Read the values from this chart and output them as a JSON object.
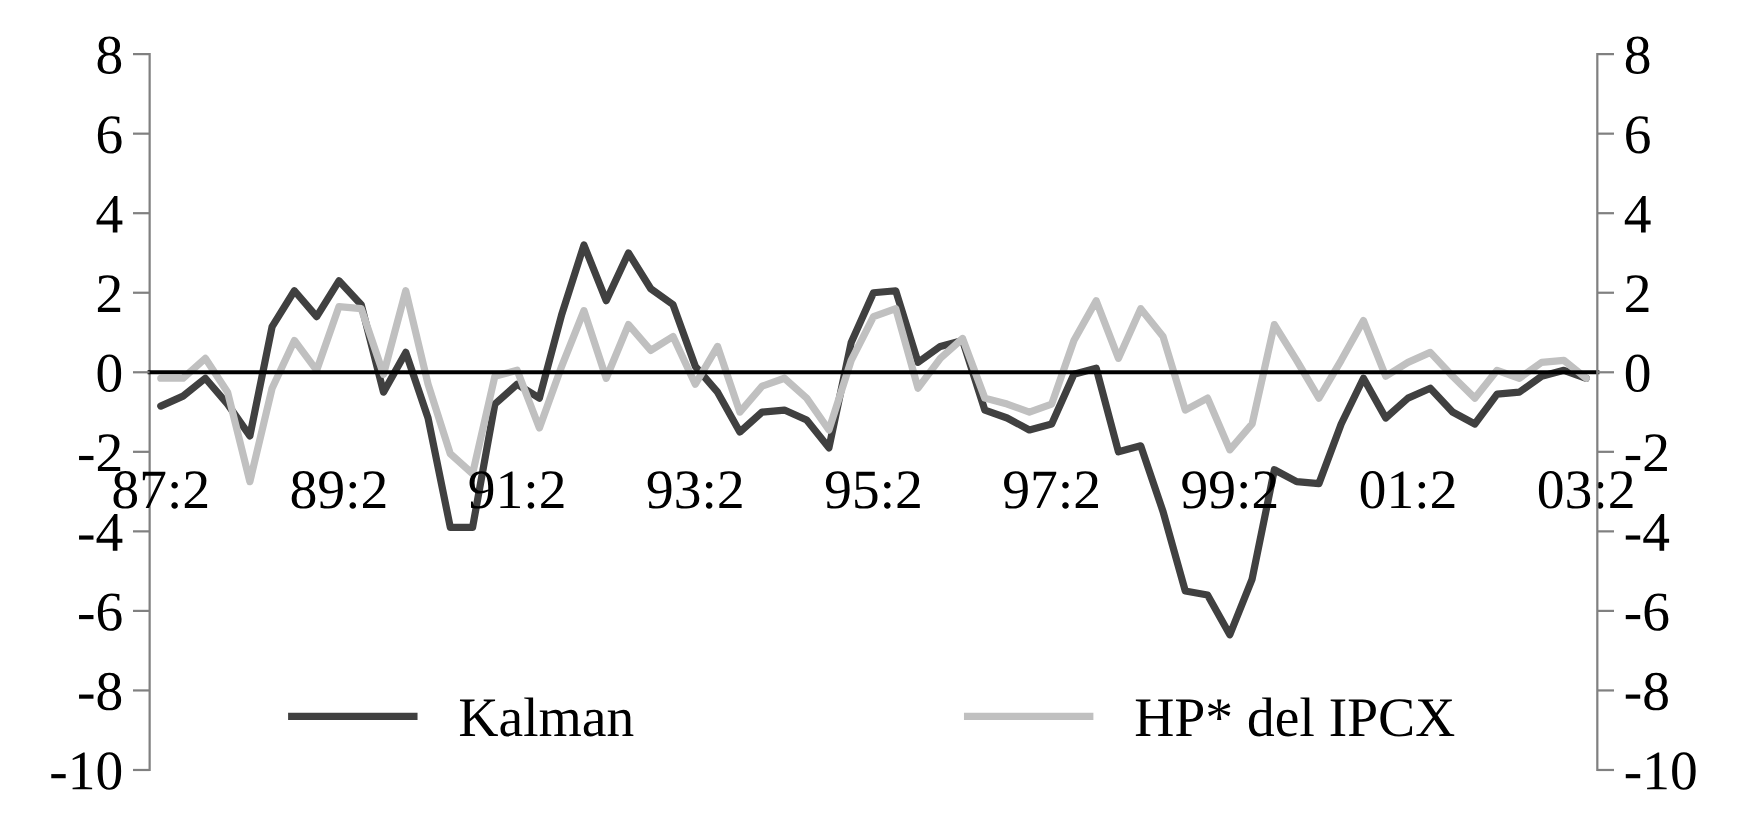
{
  "chart_data": {
    "type": "line",
    "categories": [
      "87:2",
      null,
      null,
      null,
      null,
      null,
      null,
      null,
      "89:2",
      null,
      null,
      null,
      null,
      null,
      null,
      null,
      "91:2",
      null,
      null,
      null,
      null,
      null,
      null,
      null,
      "93:2",
      null,
      null,
      null,
      null,
      null,
      null,
      null,
      "95:2",
      null,
      null,
      null,
      null,
      null,
      null,
      null,
      "97:2",
      null,
      null,
      null,
      null,
      null,
      null,
      null,
      "99:2",
      null,
      null,
      null,
      null,
      null,
      null,
      null,
      "01:2",
      null,
      null,
      null,
      null,
      null,
      null,
      null,
      "03:2"
    ],
    "series": [
      {
        "name": "Kalman",
        "color": "#404040",
        "values": [
          -0.85,
          -0.6,
          -0.15,
          -0.8,
          -1.6,
          1.15,
          2.05,
          1.4,
          2.3,
          1.7,
          -0.5,
          0.5,
          -1.15,
          -3.9,
          -3.9,
          -0.8,
          -0.3,
          -0.65,
          1.45,
          3.2,
          1.8,
          3.0,
          2.1,
          1.7,
          0.15,
          -0.5,
          -1.5,
          -1.0,
          -0.95,
          -1.2,
          -1.9,
          0.75,
          2.0,
          2.05,
          0.25,
          0.65,
          0.8,
          -0.95,
          -1.15,
          -1.45,
          -1.3,
          -0.05,
          0.1,
          -2.0,
          -1.85,
          -3.5,
          -5.5,
          -5.6,
          -6.6,
          -5.2,
          -2.45,
          -2.75,
          -2.8,
          -1.3,
          -0.15,
          -1.15,
          -0.65,
          -0.4,
          -1.0,
          -1.3,
          -0.55,
          -0.5,
          -0.1,
          0.05,
          -0.15
        ]
      },
      {
        "name": "HP* del IPCX",
        "color": "#c0c0c0",
        "values": [
          -0.15,
          -0.15,
          0.35,
          -0.5,
          -2.75,
          -0.4,
          0.8,
          0.05,
          1.65,
          1.6,
          -0.05,
          2.05,
          -0.3,
          -2.05,
          -2.55,
          -0.1,
          0.05,
          -1.4,
          0.15,
          1.55,
          -0.15,
          1.2,
          0.55,
          0.9,
          -0.3,
          0.65,
          -1.0,
          -0.35,
          -0.15,
          -0.65,
          -1.45,
          0.3,
          1.4,
          1.6,
          -0.4,
          0.35,
          0.85,
          -0.65,
          -0.8,
          -1.0,
          -0.8,
          0.8,
          1.8,
          0.35,
          1.6,
          0.9,
          -0.95,
          -0.65,
          -1.95,
          -1.3,
          1.2,
          0.3,
          -0.65,
          0.3,
          1.3,
          -0.1,
          0.25,
          0.5,
          -0.1,
          -0.65,
          0.05,
          -0.15,
          0.25,
          0.3,
          -0.15
        ]
      }
    ],
    "ylim": [
      -10,
      8
    ],
    "yticks": [
      -10,
      -8,
      -6,
      -4,
      -2,
      0,
      2,
      4,
      6,
      8
    ],
    "y2lim": [
      -10,
      8
    ],
    "y2ticks": [
      -10,
      -8,
      -6,
      -4,
      -2,
      0,
      2,
      4,
      6,
      8
    ],
    "legend": "bottom",
    "grid": false,
    "marker": "none",
    "line_style": "solid"
  }
}
